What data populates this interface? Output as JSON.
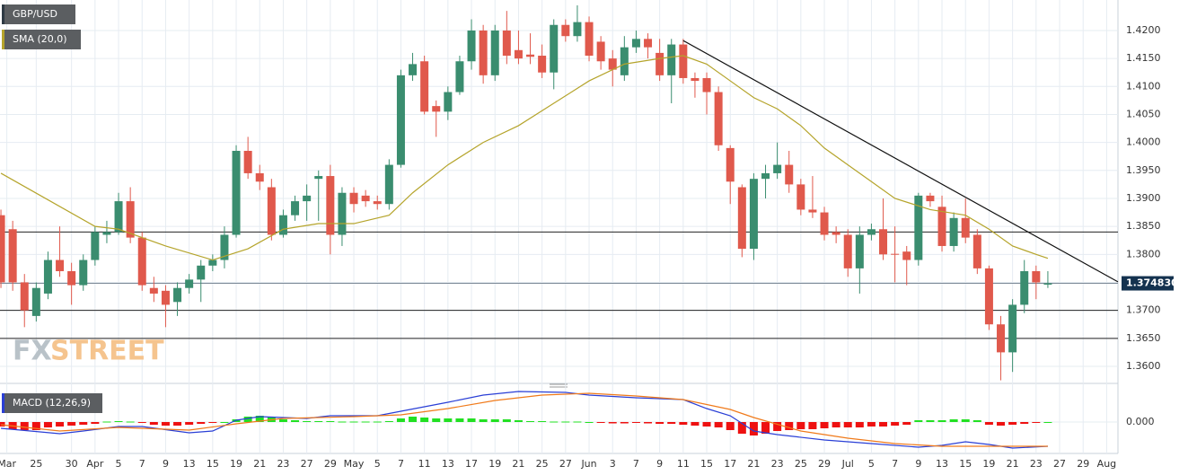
{
  "chart_data": [
    {
      "type": "candlestick",
      "symbol": "GBP/USD",
      "watermark": [
        "FX",
        "STREET"
      ],
      "up_color": "#3a8d6f",
      "down_color": "#e0594c",
      "open": [
        1.387,
        1.3845,
        1.375,
        1.369,
        1.373,
        1.379,
        1.377,
        1.3745,
        1.379,
        1.3835,
        1.384,
        1.3895,
        1.383,
        1.374,
        1.3735,
        1.3715,
        1.374,
        1.3755,
        1.378,
        1.379,
        1.3835,
        1.3985,
        1.3945,
        1.392,
        1.3835,
        1.387,
        1.3895,
        1.3935,
        1.394,
        1.3835,
        1.391,
        1.3905,
        1.3895,
        1.389,
        1.396,
        1.412,
        1.4145,
        1.4065,
        1.4055,
        1.409,
        1.4145,
        1.42,
        1.412,
        1.42,
        1.4165,
        1.4157,
        1.4155,
        1.4125,
        1.421,
        1.419,
        1.4215,
        1.418,
        1.415,
        1.412,
        1.417,
        1.4185,
        1.416,
        1.412,
        1.4175,
        1.4115,
        1.4115,
        1.409,
        1.399,
        1.392,
        1.381,
        1.3935,
        1.3945,
        1.396,
        1.3925,
        1.388,
        1.3875,
        1.384,
        1.3835,
        1.3775,
        1.3835,
        1.3845,
        1.3801,
        1.3805,
        1.379,
        1.3905,
        1.3885,
        1.3815,
        1.3865,
        1.3835,
        1.3775,
        1.3675,
        1.3625,
        1.371,
        1.377,
        1.3746
      ],
      "high": [
        1.388,
        1.386,
        1.3765,
        1.375,
        1.3805,
        1.385,
        1.3785,
        1.38,
        1.385,
        1.386,
        1.391,
        1.392,
        1.384,
        1.376,
        1.3745,
        1.375,
        1.3765,
        1.379,
        1.38,
        1.385,
        1.3995,
        1.401,
        1.396,
        1.3935,
        1.388,
        1.3905,
        1.3925,
        1.395,
        1.396,
        1.392,
        1.392,
        1.3915,
        1.3905,
        1.397,
        1.413,
        1.416,
        1.4155,
        1.4075,
        1.41,
        1.4155,
        1.422,
        1.421,
        1.421,
        1.4235,
        1.42,
        1.4195,
        1.4175,
        1.422,
        1.422,
        1.4245,
        1.4225,
        1.419,
        1.4165,
        1.419,
        1.42,
        1.4195,
        1.4185,
        1.4185,
        1.4185,
        1.4125,
        1.4125,
        1.41,
        1.3995,
        1.3925,
        1.3945,
        1.396,
        1.4,
        1.3985,
        1.3935,
        1.394,
        1.3885,
        1.385,
        1.3845,
        1.385,
        1.3855,
        1.39,
        1.385,
        1.3815,
        1.391,
        1.391,
        1.3905,
        1.3875,
        1.39,
        1.3845,
        1.378,
        1.369,
        1.372,
        1.379,
        1.378,
        1.377
      ],
      "low": [
        1.374,
        1.3735,
        1.367,
        1.368,
        1.372,
        1.376,
        1.371,
        1.3735,
        1.378,
        1.382,
        1.3835,
        1.382,
        1.3735,
        1.3715,
        1.367,
        1.369,
        1.373,
        1.3715,
        1.377,
        1.3775,
        1.383,
        1.3935,
        1.3915,
        1.3825,
        1.383,
        1.386,
        1.386,
        1.386,
        1.38,
        1.3815,
        1.3875,
        1.3885,
        1.388,
        1.388,
        1.3955,
        1.411,
        1.405,
        1.401,
        1.404,
        1.4085,
        1.413,
        1.4105,
        1.411,
        1.414,
        1.414,
        1.414,
        1.4115,
        1.4095,
        1.418,
        1.418,
        1.4145,
        1.413,
        1.41,
        1.411,
        1.416,
        1.415,
        1.411,
        1.407,
        1.4105,
        1.408,
        1.405,
        1.3985,
        1.389,
        1.3795,
        1.379,
        1.39,
        1.3935,
        1.391,
        1.387,
        1.3865,
        1.3825,
        1.382,
        1.376,
        1.373,
        1.3825,
        1.379,
        1.375,
        1.3745,
        1.378,
        1.3885,
        1.3805,
        1.3805,
        1.382,
        1.3765,
        1.3665,
        1.3575,
        1.359,
        1.3695,
        1.372,
        1.374
      ],
      "close": [
        1.375,
        1.375,
        1.37,
        1.374,
        1.379,
        1.377,
        1.3745,
        1.379,
        1.384,
        1.384,
        1.3895,
        1.383,
        1.3745,
        1.373,
        1.371,
        1.374,
        1.3755,
        1.378,
        1.379,
        1.3835,
        1.3985,
        1.3945,
        1.393,
        1.3835,
        1.387,
        1.3895,
        1.3905,
        1.394,
        1.3835,
        1.391,
        1.389,
        1.3895,
        1.389,
        1.396,
        1.412,
        1.414,
        1.4055,
        1.4055,
        1.409,
        1.4145,
        1.42,
        1.412,
        1.42,
        1.4155,
        1.415,
        1.4153,
        1.4125,
        1.421,
        1.419,
        1.4215,
        1.4155,
        1.4145,
        1.413,
        1.417,
        1.4185,
        1.417,
        1.412,
        1.4175,
        1.4115,
        1.411,
        1.409,
        1.3995,
        1.393,
        1.381,
        1.3935,
        1.3945,
        1.396,
        1.3925,
        1.388,
        1.3875,
        1.3835,
        1.3835,
        1.3775,
        1.3835,
        1.3845,
        1.38,
        1.38,
        1.379,
        1.3905,
        1.3895,
        1.3815,
        1.3865,
        1.383,
        1.3775,
        1.3675,
        1.3625,
        1.371,
        1.377,
        1.375,
        1.37483
      ],
      "series": [
        {
          "name": "SMA (20,0)",
          "color": "#b5a42b",
          "x": [
            0,
            8,
            10,
            14,
            18,
            21,
            24,
            27,
            30,
            33,
            35,
            38,
            41,
            44,
            47,
            50,
            53,
            56,
            58,
            60,
            62,
            64,
            66,
            68,
            70,
            72,
            74,
            76,
            79,
            82,
            84,
            86,
            88,
            89
          ],
          "values": [
            1.3945,
            1.385,
            1.3845,
            1.3815,
            1.379,
            1.381,
            1.3845,
            1.3855,
            1.3855,
            1.387,
            1.391,
            1.396,
            1.4,
            1.403,
            1.407,
            1.411,
            1.414,
            1.415,
            1.4155,
            1.414,
            1.411,
            1.408,
            1.406,
            1.403,
            1.399,
            1.396,
            1.393,
            1.39,
            1.388,
            1.387,
            1.3845,
            1.3815,
            1.38,
            1.3793
          ]
        }
      ],
      "trendline": {
        "x": [
          58,
          94.96
        ],
        "values": [
          1.4182,
          1.3751
        ]
      },
      "hlines": [
        1.384,
        1.37,
        1.365
      ],
      "last_price": {
        "value": 1.37483,
        "label": "1.374830"
      },
      "xlim": [
        -0.08,
        94.96
      ],
      "ylim": [
        1.35727,
        1.42545
      ],
      "yticks": [
        {
          "value": 1.36,
          "label": "1.3600"
        },
        {
          "value": 1.365,
          "label": "1.3650"
        },
        {
          "value": 1.37,
          "label": "1.3700"
        },
        {
          "value": 1.375,
          "label": "1.3750"
        },
        {
          "value": 1.38,
          "label": "1.3800"
        },
        {
          "value": 1.385,
          "label": "1.3850"
        },
        {
          "value": 1.39,
          "label": "1.3900"
        },
        {
          "value": 1.395,
          "label": "1.3950"
        },
        {
          "value": 1.4,
          "label": "1.4000"
        },
        {
          "value": 1.405,
          "label": "1.4050"
        },
        {
          "value": 1.41,
          "label": "1.4100"
        },
        {
          "value": 1.415,
          "label": "1.4150"
        },
        {
          "value": 1.42,
          "label": "1.4200"
        }
      ],
      "xticks": [
        {
          "value": 0.5,
          "label": "Mar"
        },
        {
          "value": 3,
          "label": "25"
        },
        {
          "value": 6,
          "label": "30"
        },
        {
          "value": 8,
          "label": "Apr"
        },
        {
          "value": 10,
          "label": "5"
        },
        {
          "value": 12,
          "label": "7"
        },
        {
          "value": 14,
          "label": "9"
        },
        {
          "value": 16,
          "label": "13"
        },
        {
          "value": 18,
          "label": "15"
        },
        {
          "value": 20,
          "label": "19"
        },
        {
          "value": 22,
          "label": "21"
        },
        {
          "value": 24,
          "label": "23"
        },
        {
          "value": 26,
          "label": "27"
        },
        {
          "value": 28,
          "label": "29"
        },
        {
          "value": 30,
          "label": "May"
        },
        {
          "value": 32,
          "label": "5"
        },
        {
          "value": 34,
          "label": "7"
        },
        {
          "value": 36,
          "label": "11"
        },
        {
          "value": 38,
          "label": "13"
        },
        {
          "value": 40,
          "label": "17"
        },
        {
          "value": 42,
          "label": "19"
        },
        {
          "value": 44,
          "label": "21"
        },
        {
          "value": 46,
          "label": "25"
        },
        {
          "value": 48,
          "label": "27"
        },
        {
          "value": 50,
          "label": "Jun"
        },
        {
          "value": 52,
          "label": "3"
        },
        {
          "value": 54,
          "label": "7"
        },
        {
          "value": 56,
          "label": "9"
        },
        {
          "value": 58,
          "label": "11"
        },
        {
          "value": 60,
          "label": "15"
        },
        {
          "value": 62,
          "label": "17"
        },
        {
          "value": 64,
          "label": "21"
        },
        {
          "value": 66,
          "label": "23"
        },
        {
          "value": 68,
          "label": "25"
        },
        {
          "value": 70,
          "label": "29"
        },
        {
          "value": 72,
          "label": "Jul"
        },
        {
          "value": 74,
          "label": "5"
        },
        {
          "value": 76,
          "label": "7"
        },
        {
          "value": 78,
          "label": "9"
        },
        {
          "value": 80,
          "label": "13"
        },
        {
          "value": 82,
          "label": "15"
        },
        {
          "value": 84,
          "label": "19"
        },
        {
          "value": 86,
          "label": "21"
        },
        {
          "value": 88,
          "label": "23"
        },
        {
          "value": 90,
          "label": "27"
        },
        {
          "value": 92,
          "label": "29"
        },
        {
          "value": 94,
          "label": "Aug"
        }
      ],
      "grid": true
    },
    {
      "type": "macd",
      "title": "MACD (12,26,9)",
      "up_color": "#22e022",
      "down_color": "#ee1111",
      "histogram": [
        -0.0005,
        -0.0008,
        -0.0009,
        -0.0009,
        -0.0006,
        -0.0005,
        -0.0004,
        -0.0003,
        -0.0002,
        5e-05,
        0.0001,
        5e-05,
        -0.0001,
        -0.0003,
        -0.0004,
        -0.0004,
        -0.0003,
        -0.0002,
        -0.0001,
        0.0,
        0.0003,
        0.0006,
        0.0007,
        0.0005,
        0.0003,
        0.0002,
        0.0001,
        0.0001,
        0.0001,
        5e-05,
        5e-05,
        5e-05,
        5e-05,
        0.0001,
        0.0004,
        0.0006,
        0.0005,
        0.0004,
        0.0004,
        0.0004,
        0.0004,
        0.0003,
        0.0003,
        0.0003,
        0.0002,
        0.0001,
        0.0001,
        5e-05,
        5e-05,
        5e-05,
        0.0,
        -0.0001,
        -0.00015,
        -0.00015,
        -0.0001,
        -0.00015,
        -0.0002,
        -0.0002,
        -0.0003,
        -0.0004,
        -0.0005,
        -0.0006,
        -0.0009,
        -0.0013,
        -0.0015,
        -0.0013,
        -0.001,
        -0.0009,
        -0.0008,
        -0.0008,
        -0.0007,
        -0.0006,
        -0.0006,
        -0.0006,
        -0.0005,
        -0.0005,
        -0.0004,
        -0.0003,
        0.0002,
        0.0002,
        0.0002,
        0.0003,
        0.0003,
        0.0002,
        -0.0003,
        -0.0004,
        -0.0003,
        -0.0002,
        -5e-05,
        0.0
      ],
      "series": [
        {
          "color": "#2a3fd6",
          "x": [
            0,
            5,
            7,
            10,
            12,
            16,
            18,
            20,
            22,
            26,
            28,
            32,
            34,
            38,
            41,
            44,
            48,
            50,
            54,
            58,
            60,
            62,
            64,
            66,
            70,
            74,
            78,
            80,
            82,
            84,
            86,
            89
          ],
          "values": [
            -0.0007,
            -0.0013,
            -0.001,
            -0.0005,
            -0.0005,
            -0.0012,
            -0.001,
            0.0002,
            0.0006,
            0.0004,
            0.0007,
            0.0007,
            0.0012,
            0.0022,
            0.003,
            0.0034,
            0.0033,
            0.003,
            0.0027,
            0.0025,
            0.0015,
            0.0007,
            -0.001,
            -0.0014,
            -0.002,
            -0.0024,
            -0.0028,
            -0.0026,
            -0.0022,
            -0.0025,
            -0.0029,
            -0.0027
          ]
        },
        {
          "color": "#f07a1a",
          "x": [
            0,
            5,
            10,
            16,
            20,
            24,
            30,
            34,
            38,
            42,
            46,
            50,
            54,
            58,
            62,
            64,
            68,
            72,
            76,
            80,
            84,
            89
          ],
          "values": [
            -0.0003,
            -0.001,
            -0.0006,
            -0.0009,
            -0.0002,
            0.0004,
            0.0006,
            0.0008,
            0.0015,
            0.0024,
            0.003,
            0.0032,
            0.0029,
            0.0025,
            0.0014,
            0.0005,
            -0.001,
            -0.0018,
            -0.0024,
            -0.0027,
            -0.0027,
            -0.0027
          ]
        }
      ],
      "ylim": [
        -0.0035,
        0.0037
      ],
      "yticks": [
        {
          "value": 0,
          "label": "0.000"
        }
      ]
    }
  ]
}
